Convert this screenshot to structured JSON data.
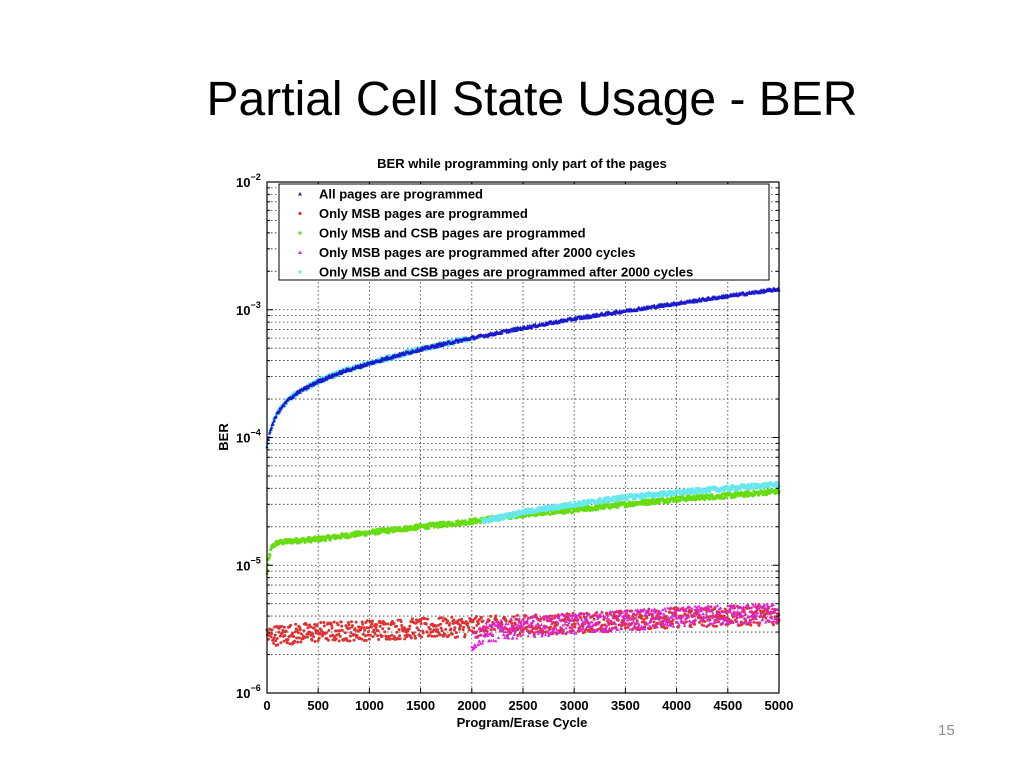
{
  "slide": {
    "title": "Partial Cell State Usage - BER",
    "number": "15"
  },
  "chart_data": {
    "type": "scatter",
    "title": "BER while programming only part of the pages",
    "xlabel": "Program/Erase Cycle",
    "ylabel": "BER",
    "xlim": [
      0,
      5000
    ],
    "ylim": [
      1e-06,
      0.01
    ],
    "y_scale": "log",
    "grid": true,
    "legend_position": "top",
    "x_ticks": [
      "0",
      "500",
      "1000",
      "1500",
      "2000",
      "2500",
      "3000",
      "3500",
      "4000",
      "4500",
      "5000"
    ],
    "y_ticks": [
      {
        "base": "10",
        "exp": "−6",
        "value": 1e-06
      },
      {
        "base": "10",
        "exp": "−5",
        "value": 1e-05
      },
      {
        "base": "10",
        "exp": "−4",
        "value": 0.0001
      },
      {
        "base": "10",
        "exp": "−3",
        "value": 0.001
      },
      {
        "base": "10",
        "exp": "−2",
        "value": 0.01
      }
    ],
    "series": [
      {
        "name": "All pages are programmed",
        "color": "#1a1acc",
        "marker": "triangle",
        "x": [
          0,
          10,
          25,
          50,
          100,
          200,
          300,
          500,
          750,
          1000,
          1250,
          1500,
          1750,
          2000,
          2500,
          3000,
          3500,
          4000,
          4500,
          5000
        ],
        "y": [
          8.5e-05,
          9.5e-05,
          0.000105,
          0.000125,
          0.000155,
          0.000195,
          0.000225,
          0.000275,
          0.00033,
          0.00038,
          0.000435,
          0.00049,
          0.000545,
          0.0006,
          0.00072,
          0.00085,
          0.00098,
          0.00112,
          0.00128,
          0.00145
        ]
      },
      {
        "name": "Only MSB pages are programmed",
        "color": "#dd3333",
        "marker": "dot",
        "x": [
          0,
          500,
          1000,
          1500,
          2000,
          2500,
          3000,
          3500,
          4000,
          4500,
          5000
        ],
        "y": [
          2.8e-06,
          3e-06,
          3.1e-06,
          3.2e-06,
          3.3e-06,
          3.4e-06,
          3.5e-06,
          3.7e-06,
          3.9e-06,
          4e-06,
          4.1e-06
        ]
      },
      {
        "name": "Only MSB and CSB pages are programmed",
        "color": "#66dd11",
        "marker": "dot",
        "x": [
          0,
          10,
          25,
          50,
          100,
          250,
          500,
          1000,
          1500,
          2000,
          2500,
          3000,
          3500,
          4000,
          4500,
          5000
        ],
        "y": [
          8.5e-06,
          1e-05,
          1.2e-05,
          1.4e-05,
          1.5e-05,
          1.55e-05,
          1.6e-05,
          1.8e-05,
          2e-05,
          2.2e-05,
          2.5e-05,
          2.7e-05,
          3e-05,
          3.3e-05,
          3.5e-05,
          3.8e-05
        ]
      },
      {
        "name": "Only MSB pages are programmed after 2000 cycles",
        "color": "#dd22dd",
        "marker": "triangle",
        "x": [
          2000,
          2050,
          2100,
          2200,
          2400,
          2600,
          3000,
          3500,
          4000,
          4500,
          5000
        ],
        "y": [
          2.5e-06,
          2.7e-06,
          2.9e-06,
          3e-06,
          3.2e-06,
          3.3e-06,
          3.5e-06,
          3.7e-06,
          3.9e-06,
          4.1e-06,
          4.2e-06
        ]
      },
      {
        "name": "Only MSB and CSB pages are programmed after 2000 cycles",
        "color": "#66e8ee",
        "marker": "dot",
        "x": [
          0,
          10,
          25,
          50,
          100,
          200,
          300,
          500,
          750,
          1000,
          1250,
          1500,
          1750,
          2000,
          2100,
          2500,
          3000,
          3500,
          4000,
          4500,
          5000
        ],
        "y": [
          8.5e-05,
          9.5e-05,
          0.000105,
          0.000125,
          0.000155,
          0.000195,
          0.000225,
          0.000275,
          0.00033,
          0.00038,
          0.000435,
          0.00049,
          0.000545,
          0.0006,
          2.2e-05,
          2.6e-05,
          3e-05,
          3.4e-05,
          3.7e-05,
          4e-05,
          4.3e-05
        ]
      }
    ]
  }
}
